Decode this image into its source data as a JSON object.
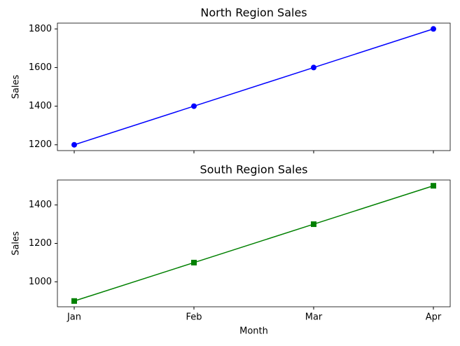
{
  "chart_data": [
    {
      "type": "line",
      "title": "North Region Sales",
      "ylabel": "Sales",
      "categories": [
        null,
        null,
        null,
        null
      ],
      "values": [
        1200,
        1400,
        1600,
        1800
      ],
      "color": "#0000ff",
      "marker": "circle",
      "ylim": [
        1170,
        1830
      ],
      "yticks": [
        1200,
        1400,
        1600,
        1800
      ],
      "grid": false
    },
    {
      "type": "line",
      "title": "South Region Sales",
      "ylabel": "Sales",
      "xlabel": "Month",
      "categories": [
        "Jan",
        "Feb",
        "Mar",
        "Apr"
      ],
      "values": [
        900,
        1100,
        1300,
        1500
      ],
      "color": "#008000",
      "marker": "square",
      "ylim": [
        870,
        1530
      ],
      "yticks": [
        1000,
        1200,
        1400
      ],
      "grid": false
    }
  ]
}
